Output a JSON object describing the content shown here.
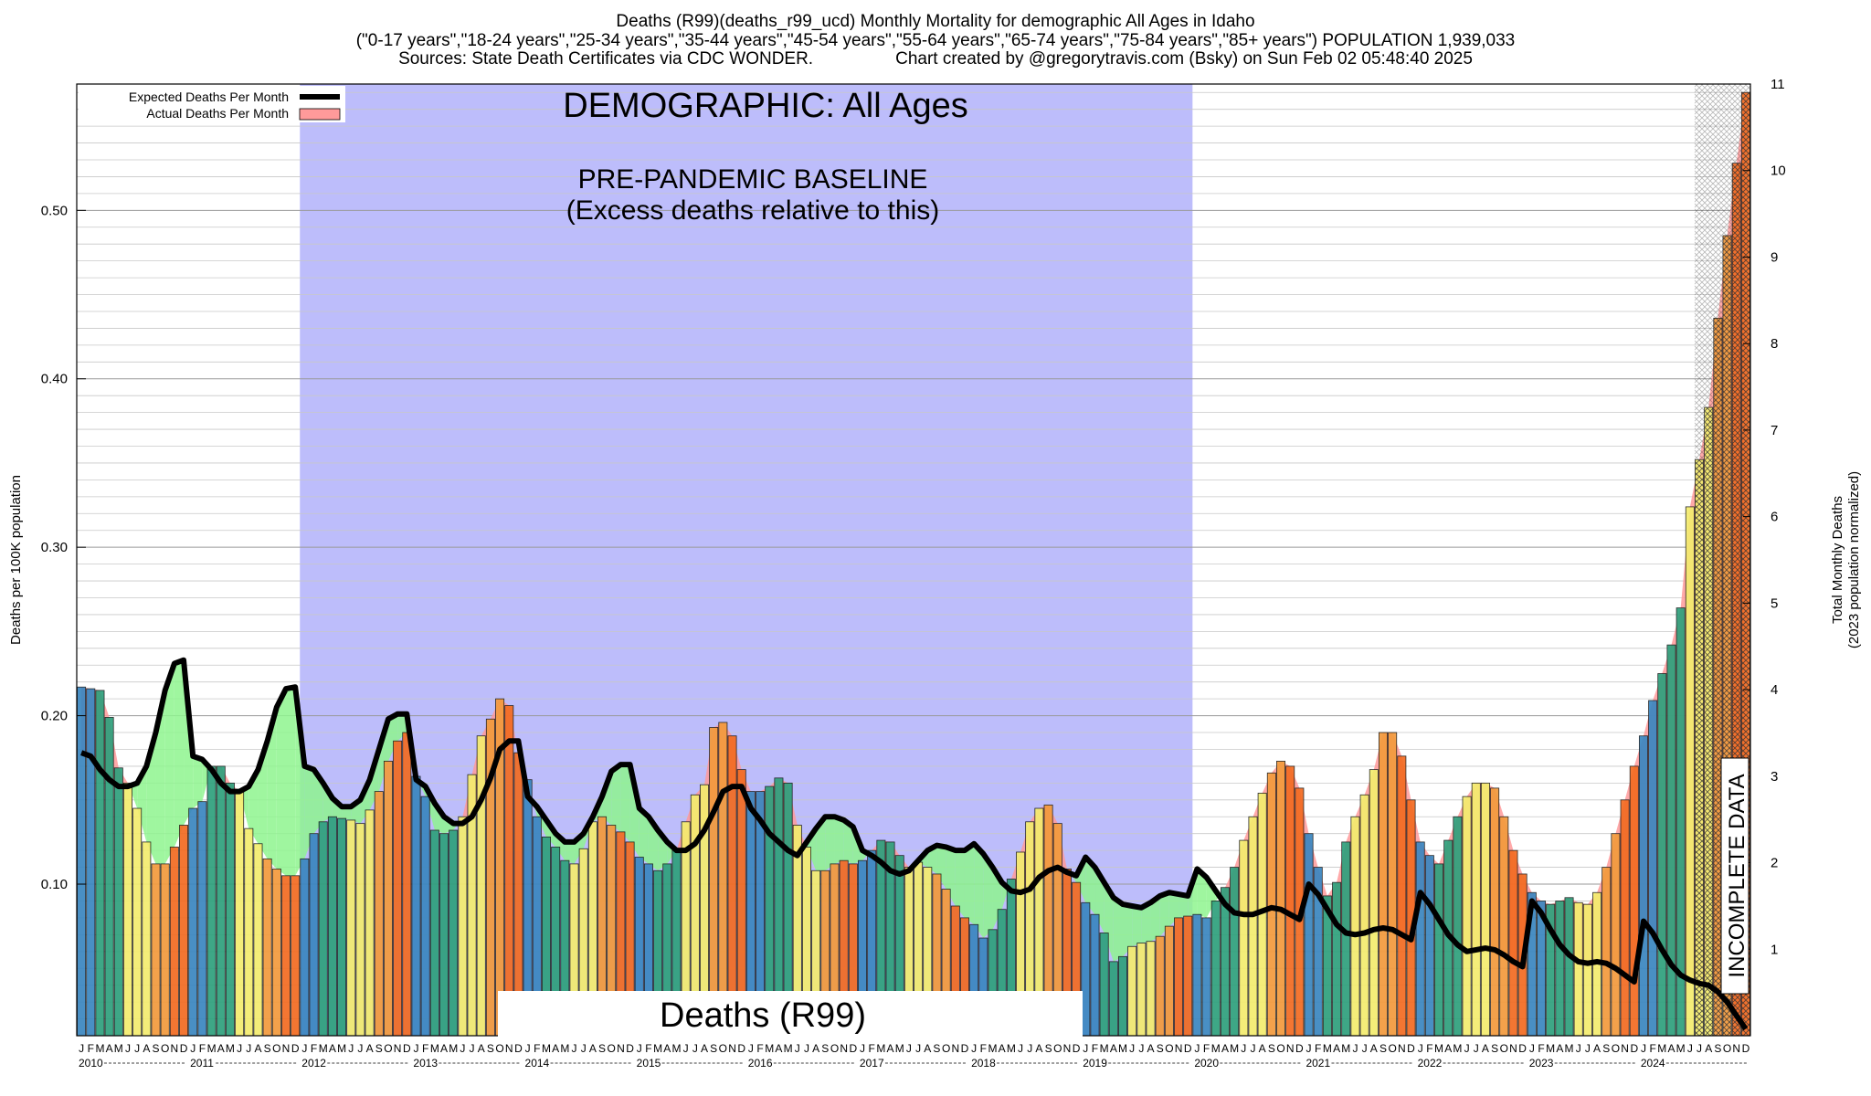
{
  "header": {
    "title": "Deaths (R99)(deaths_r99_ucd) Monthly Mortality for demographic All Ages in Idaho",
    "subtitle": "(\"0-17 years\",\"18-24 years\",\"25-34 years\",\"35-44 years\",\"45-54 years\",\"55-64 years\",\"65-74 years\",\"75-84 years\",\"85+ years\") POPULATION 1,939,033",
    "sources": "Sources: State Death Certificates via CDC WONDER.",
    "credit": "Chart created by @gregorytravis.com (Bsky) on Sun Feb 02 05:48:40 2025"
  },
  "legend": {
    "expected": "Expected Deaths Per Month",
    "actual": "Actual Deaths Per Month"
  },
  "annotations": {
    "demographic": "DEMOGRAPHIC: All Ages",
    "baseline_line1": "PRE-PANDEMIC BASELINE",
    "baseline_line2": "(Excess deaths relative to this)",
    "cause": "Deaths (R99)",
    "incomplete": "INCOMPLETE DATA"
  },
  "colors": {
    "baseline_region": "#bdbdfb",
    "excess_fill": "#ff9a9a",
    "deficit_fill": "#8ef48e",
    "expected_line": "#000000",
    "winter": "#3a86c0",
    "spring": "#2ea07c",
    "summer": "#f4ec6e",
    "fall": "#f39a3c",
    "peak": "#f26b21"
  },
  "chart_data": {
    "type": "bar",
    "ylabel": "Deaths per 100K population",
    "y2label_line1": "Total Monthly Deaths",
    "y2label_line2": "(2023 population normalized)",
    "ylim": [
      0.01,
      0.575
    ],
    "y2lim": [
      0,
      11
    ],
    "yticks": [
      "0.10",
      "0.20",
      "0.30",
      "0.40",
      "0.50"
    ],
    "y2ticks": [
      "1",
      "2",
      "3",
      "4",
      "5",
      "6",
      "7",
      "8",
      "9",
      "10",
      "11"
    ],
    "month_letters": [
      "J",
      "F",
      "M",
      "A",
      "M",
      "J",
      "J",
      "A",
      "S",
      "O",
      "N",
      "D"
    ],
    "years": [
      "2010",
      "2011",
      "2012",
      "2013",
      "2014",
      "2015",
      "2016",
      "2017",
      "2018",
      "2019",
      "2020",
      "2021",
      "2022",
      "2023",
      "2024"
    ],
    "baseline_years": [
      "2012",
      "2019"
    ],
    "incomplete_from": "2024-07",
    "series": [
      {
        "name": "Actual Deaths Per Month",
        "values": [
          0.217,
          0.216,
          0.215,
          0.199,
          0.169,
          0.16,
          0.145,
          0.125,
          0.112,
          0.112,
          0.122,
          0.135,
          0.145,
          0.149,
          0.17,
          0.17,
          0.16,
          0.155,
          0.133,
          0.124,
          0.115,
          0.109,
          0.105,
          0.105,
          0.115,
          0.13,
          0.137,
          0.14,
          0.139,
          0.138,
          0.136,
          0.144,
          0.155,
          0.173,
          0.185,
          0.19,
          0.164,
          0.152,
          0.132,
          0.13,
          0.132,
          0.14,
          0.165,
          0.188,
          0.198,
          0.21,
          0.206,
          0.178,
          0.162,
          0.14,
          0.128,
          0.122,
          0.114,
          0.112,
          0.121,
          0.137,
          0.14,
          0.135,
          0.131,
          0.125,
          0.116,
          0.112,
          0.108,
          0.112,
          0.12,
          0.137,
          0.153,
          0.159,
          0.193,
          0.196,
          0.188,
          0.168,
          0.155,
          0.155,
          0.158,
          0.163,
          0.16,
          0.135,
          0.122,
          0.108,
          0.108,
          0.112,
          0.114,
          0.112,
          0.114,
          0.12,
          0.126,
          0.125,
          0.117,
          0.11,
          0.113,
          0.11,
          0.106,
          0.097,
          0.087,
          0.08,
          0.076,
          0.068,
          0.073,
          0.085,
          0.103,
          0.119,
          0.137,
          0.145,
          0.147,
          0.136,
          0.109,
          0.101,
          0.089,
          0.082,
          0.071,
          0.054,
          0.057,
          0.063,
          0.065,
          0.066,
          0.069,
          0.075,
          0.08,
          0.081,
          0.082,
          0.08,
          0.09,
          0.098,
          0.11,
          0.126,
          0.14,
          0.154,
          0.166,
          0.173,
          0.17,
          0.157,
          0.13,
          0.11,
          0.093,
          0.101,
          0.125,
          0.14,
          0.153,
          0.168,
          0.19,
          0.19,
          0.176,
          0.15,
          0.125,
          0.117,
          0.112,
          0.126,
          0.14,
          0.152,
          0.16,
          0.16,
          0.157,
          0.14,
          0.12,
          0.106,
          0.095,
          0.09,
          0.088,
          0.09,
          0.092,
          0.089,
          0.088,
          0.095,
          0.11,
          0.13,
          0.15,
          0.17,
          0.188,
          0.209,
          0.225,
          0.242,
          0.264,
          0.324,
          0.352,
          0.383,
          0.436,
          0.485,
          0.528,
          0.57
        ]
      },
      {
        "name": "Expected Deaths Per Month",
        "values": [
          0.178,
          0.176,
          0.168,
          0.162,
          0.158,
          0.158,
          0.16,
          0.17,
          0.19,
          0.215,
          0.231,
          0.233,
          0.176,
          0.174,
          0.168,
          0.16,
          0.155,
          0.155,
          0.158,
          0.168,
          0.185,
          0.205,
          0.216,
          0.217,
          0.17,
          0.168,
          0.16,
          0.151,
          0.146,
          0.146,
          0.15,
          0.162,
          0.18,
          0.198,
          0.201,
          0.201,
          0.162,
          0.158,
          0.148,
          0.14,
          0.136,
          0.136,
          0.14,
          0.15,
          0.163,
          0.18,
          0.185,
          0.185,
          0.152,
          0.146,
          0.138,
          0.13,
          0.125,
          0.125,
          0.13,
          0.14,
          0.152,
          0.167,
          0.171,
          0.171,
          0.145,
          0.14,
          0.132,
          0.125,
          0.12,
          0.12,
          0.124,
          0.132,
          0.143,
          0.155,
          0.158,
          0.158,
          0.145,
          0.138,
          0.13,
          0.125,
          0.12,
          0.117,
          0.125,
          0.133,
          0.14,
          0.14,
          0.138,
          0.134,
          0.12,
          0.117,
          0.113,
          0.108,
          0.106,
          0.108,
          0.114,
          0.12,
          0.123,
          0.122,
          0.12,
          0.12,
          0.124,
          0.118,
          0.11,
          0.101,
          0.096,
          0.095,
          0.097,
          0.104,
          0.108,
          0.11,
          0.107,
          0.105,
          0.116,
          0.11,
          0.101,
          0.092,
          0.088,
          0.087,
          0.086,
          0.089,
          0.093,
          0.095,
          0.094,
          0.093,
          0.109,
          0.104,
          0.096,
          0.088,
          0.083,
          0.082,
          0.082,
          0.084,
          0.086,
          0.085,
          0.082,
          0.079,
          0.1,
          0.094,
          0.085,
          0.076,
          0.071,
          0.07,
          0.071,
          0.073,
          0.074,
          0.073,
          0.07,
          0.067,
          0.095,
          0.088,
          0.079,
          0.07,
          0.064,
          0.06,
          0.061,
          0.062,
          0.061,
          0.058,
          0.054,
          0.051,
          0.09,
          0.083,
          0.073,
          0.064,
          0.058,
          0.054,
          0.053,
          0.054,
          0.053,
          0.05,
          0.046,
          0.042,
          0.078,
          0.071,
          0.061,
          0.052,
          0.046,
          0.043,
          0.041,
          0.04,
          0.036,
          0.03,
          0.022,
          0.014
        ]
      }
    ]
  }
}
